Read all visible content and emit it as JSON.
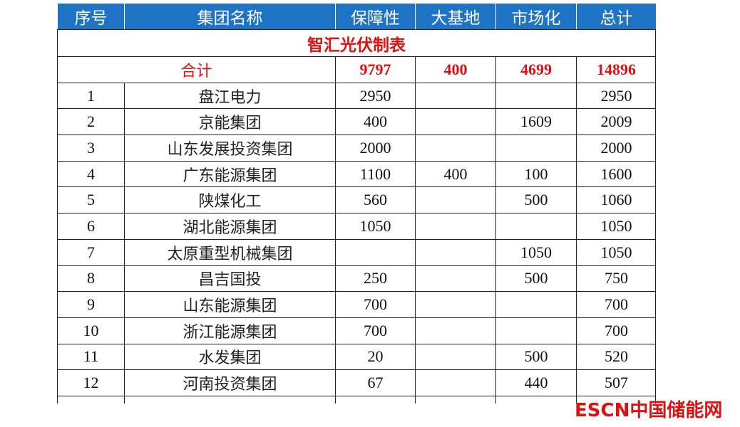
{
  "table": {
    "header": [
      "序号",
      "集团名称",
      "保障性",
      "大基地",
      "市场化",
      "总计"
    ],
    "title": "智汇光伏制表",
    "total": {
      "label": "合计",
      "values": [
        9797,
        400,
        4699,
        14896
      ]
    },
    "rows": [
      [
        1,
        "盘江电力",
        2950,
        null,
        null,
        2950
      ],
      [
        2,
        "京能集团",
        400,
        null,
        1609,
        2009
      ],
      [
        3,
        "山东发展投资集团",
        2000,
        null,
        null,
        2000
      ],
      [
        4,
        "广东能源集团",
        1100,
        400,
        100,
        1600
      ],
      [
        5,
        "陕煤化工",
        560,
        null,
        500,
        1060
      ],
      [
        6,
        "湖北能源集团",
        1050,
        null,
        null,
        1050
      ],
      [
        7,
        "太原重型机械集团",
        null,
        null,
        1050,
        1050
      ],
      [
        8,
        "昌吉国投",
        250,
        null,
        500,
        750
      ],
      [
        9,
        "山东能源集团",
        700,
        null,
        null,
        700
      ],
      [
        10,
        "浙江能源集团",
        700,
        null,
        null,
        700
      ],
      [
        11,
        "水发集团",
        20,
        null,
        500,
        520
      ],
      [
        12,
        "河南投资集团",
        67,
        null,
        440,
        507
      ]
    ]
  },
  "watermark": {
    "brand": "ESCN",
    "text": "中国储能网"
  }
}
